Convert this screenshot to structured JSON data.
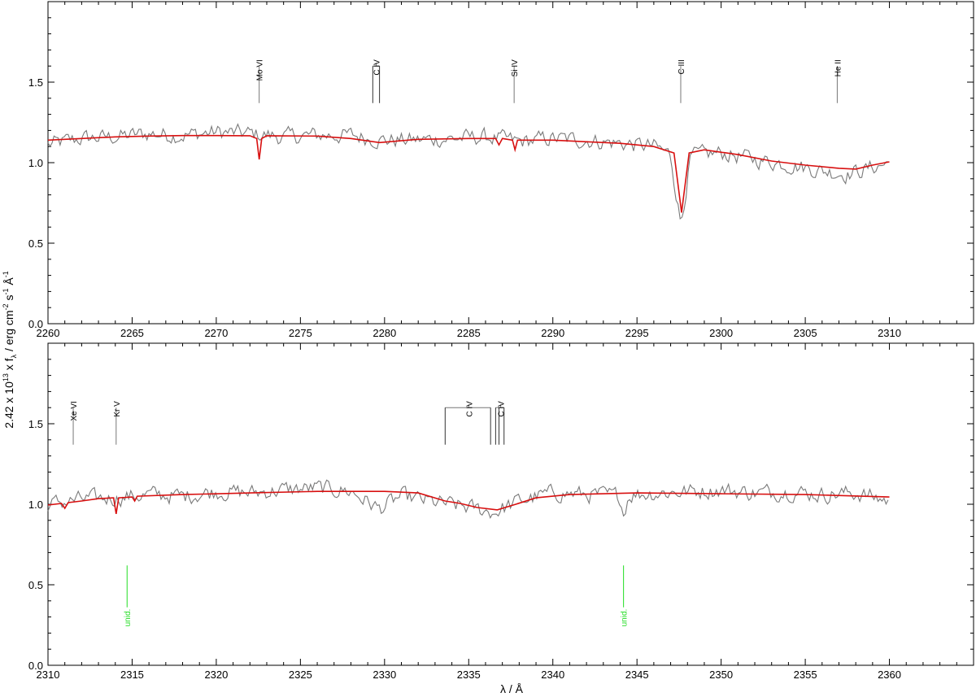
{
  "figure": {
    "ylabel_prefix": "2.42 x 10",
    "ylabel_exp": "13",
    "ylabel_mid": " x f",
    "ylabel_sub": "λ",
    "ylabel_units": " / erg cm",
    "ylabel_cm_exp": "-2",
    "ylabel_s": " s",
    "ylabel_s_exp": "-1",
    "ylabel_A": " Å",
    "ylabel_A_exp": "-1",
    "xlabel": "λ / Å",
    "colors": {
      "observed": "#7a7a7a",
      "model": "#d81010",
      "unid": "#22dd22",
      "id_line": "#777777",
      "axis": "#000000"
    }
  },
  "chart_data": [
    {
      "type": "line",
      "panel": "top",
      "xlim": [
        2260,
        2315
      ],
      "ylim": [
        0,
        2.0
      ],
      "xticks": [
        2260,
        2265,
        2270,
        2275,
        2280,
        2285,
        2290,
        2295,
        2300,
        2305,
        2310
      ],
      "yticks": [
        0.0,
        0.5,
        1.0,
        1.5
      ],
      "ytick_labels": [
        "0.0",
        "0.5",
        "1.0",
        "1.5"
      ],
      "series": [
        {
          "role": "observed",
          "x": [
            2260,
            2262,
            2264,
            2266,
            2268,
            2270,
            2272,
            2274,
            2276,
            2278,
            2280,
            2282,
            2284,
            2286,
            2288,
            2290,
            2292,
            2294,
            2296,
            2297,
            2297.6,
            2298.2,
            2300,
            2302,
            2304,
            2306,
            2307.5,
            2309,
            2310
          ],
          "y": [
            1.11,
            1.15,
            1.16,
            1.18,
            1.17,
            1.19,
            1.18,
            1.16,
            1.17,
            1.17,
            1.14,
            1.14,
            1.15,
            1.16,
            1.13,
            1.15,
            1.14,
            1.12,
            1.1,
            1.05,
            0.62,
            1.04,
            1.06,
            1.02,
            0.99,
            0.95,
            0.93,
            0.97,
            1.0
          ]
        },
        {
          "role": "model",
          "x": [
            2260,
            2262,
            2264,
            2266,
            2268,
            2270,
            2272,
            2272.4,
            2272.55,
            2272.7,
            2273,
            2276,
            2278,
            2279.7,
            2282,
            2285,
            2286.6,
            2286.8,
            2287,
            2287.6,
            2287.75,
            2287.9,
            2290,
            2292,
            2294,
            2296,
            2297.2,
            2297.65,
            2298.1,
            2299,
            2301,
            2303,
            2305,
            2307,
            2308,
            2309,
            2310
          ],
          "y": [
            1.14,
            1.15,
            1.16,
            1.165,
            1.168,
            1.168,
            1.167,
            1.15,
            1.02,
            1.15,
            1.167,
            1.165,
            1.15,
            1.125,
            1.145,
            1.15,
            1.15,
            1.11,
            1.15,
            1.14,
            1.08,
            1.14,
            1.14,
            1.13,
            1.12,
            1.1,
            1.06,
            0.69,
            1.06,
            1.08,
            1.05,
            1.01,
            0.985,
            0.965,
            0.96,
            0.985,
            1.005
          ]
        }
      ],
      "ids": [
        {
          "label": "Mo VI",
          "x": 2272.55
        },
        {
          "label": "C IV",
          "x": 2279.5,
          "comps": [
            2279.3,
            2279.7
          ]
        },
        {
          "label": "Si IV",
          "x": 2287.7
        },
        {
          "label": "C III",
          "x": 2297.6
        },
        {
          "label": "He II",
          "x": 2306.9
        }
      ],
      "unid": []
    },
    {
      "type": "line",
      "panel": "bottom",
      "xlim": [
        2310,
        2365
      ],
      "ylim": [
        0,
        2.0
      ],
      "xticks": [
        2310,
        2315,
        2320,
        2325,
        2330,
        2335,
        2340,
        2345,
        2350,
        2355,
        2360
      ],
      "yticks": [
        0.0,
        0.5,
        1.0,
        1.5
      ],
      "ytick_labels": [
        "0.0",
        "0.5",
        "1.0",
        "1.5"
      ],
      "xlabel": "λ / Å",
      "series": [
        {
          "role": "observed",
          "x": [
            2310,
            2312,
            2314,
            2316,
            2318,
            2320,
            2322,
            2324,
            2326,
            2328,
            2329.7,
            2331,
            2333,
            2335,
            2336.5,
            2338,
            2340,
            2342,
            2344,
            2344.2,
            2344.5,
            2346,
            2348,
            2350,
            2352,
            2354,
            2356,
            2358,
            2360
          ],
          "y": [
            1.0,
            1.03,
            1.04,
            1.06,
            1.05,
            1.08,
            1.07,
            1.09,
            1.1,
            1.08,
            0.97,
            1.05,
            1.01,
            0.98,
            0.95,
            1.02,
            1.07,
            1.06,
            1.05,
            0.94,
            1.06,
            1.07,
            1.08,
            1.09,
            1.07,
            1.08,
            1.06,
            1.07,
            1.02
          ]
        },
        {
          "role": "model",
          "x": [
            2310,
            2310.8,
            2311,
            2311.2,
            2312,
            2313,
            2313.9,
            2314.05,
            2314.2,
            2315,
            2315.15,
            2315.3,
            2318,
            2322,
            2326,
            2330,
            2332,
            2333.6,
            2334.5,
            2335.5,
            2336.7,
            2337.8,
            2339,
            2341,
            2345,
            2350,
            2355,
            2360
          ],
          "y": [
            0.995,
            1.005,
            0.975,
            1.01,
            1.02,
            1.035,
            1.04,
            0.94,
            1.04,
            1.045,
            1.02,
            1.05,
            1.06,
            1.07,
            1.08,
            1.08,
            1.07,
            1.02,
            1.005,
            0.98,
            0.965,
            1.0,
            1.04,
            1.06,
            1.07,
            1.065,
            1.06,
            1.045
          ]
        }
      ],
      "ids": [
        {
          "label": "Xe VI",
          "x": 2311.5
        },
        {
          "label": "Kr V",
          "x": 2314.05
        },
        {
          "label": "C IV",
          "x": 2335.0,
          "comps": [
            2333.6,
            2336.3
          ]
        },
        {
          "label": "C IV",
          "x": 2336.9,
          "comps": [
            2336.6,
            2336.8,
            2337.1
          ]
        }
      ],
      "unid": [
        {
          "label": "unid.",
          "x": 2314.7
        },
        {
          "label": "unid.",
          "x": 2344.2
        }
      ]
    }
  ]
}
